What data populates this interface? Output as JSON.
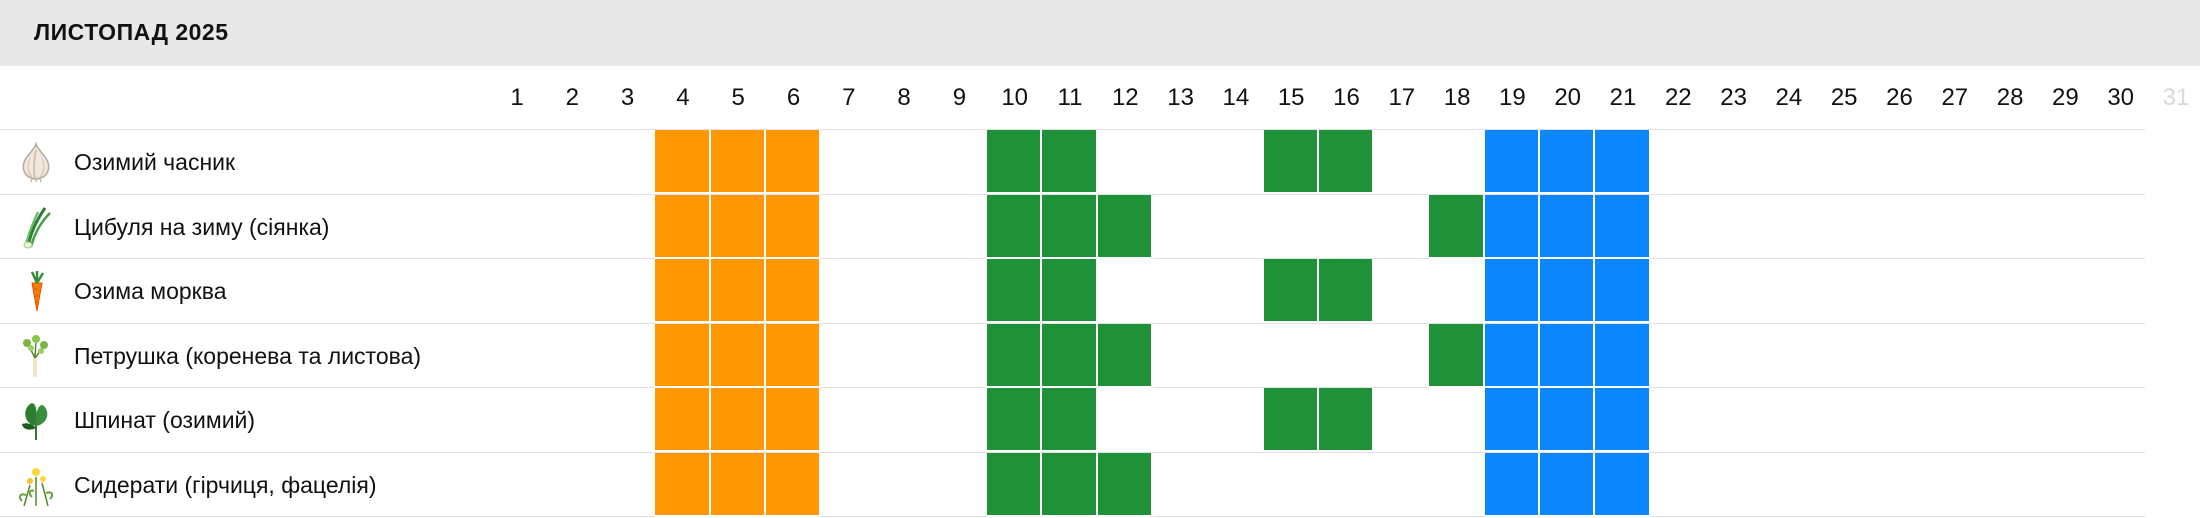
{
  "header": {
    "title": "ЛИСТОПАД 2025"
  },
  "days": [
    "1",
    "2",
    "3",
    "4",
    "5",
    "6",
    "7",
    "8",
    "9",
    "10",
    "11",
    "12",
    "13",
    "14",
    "15",
    "16",
    "17",
    "18",
    "19",
    "20",
    "21",
    "22",
    "23",
    "24",
    "25",
    "26",
    "27",
    "28",
    "29",
    "30",
    "31"
  ],
  "dim_days": [
    31
  ],
  "colors": {
    "orange": "#ff9603",
    "green": "#1f9139",
    "blue": "#0b86fb"
  },
  "rows": [
    {
      "label": "Озимий часник",
      "icon": "garlic-icon",
      "orange": [
        4,
        5,
        6
      ],
      "green": [
        10,
        11,
        15,
        16
      ],
      "blue": [
        19,
        20,
        21
      ]
    },
    {
      "label": "Цибуля на зиму (сіянка)",
      "icon": "green-onion-icon",
      "orange": [
        4,
        5,
        6
      ],
      "green": [
        10,
        11,
        12,
        18
      ],
      "blue": [
        19,
        20,
        21
      ]
    },
    {
      "label": "Озима морква",
      "icon": "carrot-icon",
      "orange": [
        4,
        5,
        6
      ],
      "green": [
        10,
        11,
        15,
        16
      ],
      "blue": [
        19,
        20,
        21
      ]
    },
    {
      "label": "Петрушка (коренева та листова)",
      "icon": "parsley-icon",
      "orange": [
        4,
        5,
        6
      ],
      "green": [
        10,
        11,
        12,
        18
      ],
      "blue": [
        19,
        20,
        21
      ]
    },
    {
      "label": "Шпинат (озимий)",
      "icon": "spinach-icon",
      "orange": [
        4,
        5,
        6
      ],
      "green": [
        10,
        11,
        15,
        16
      ],
      "blue": [
        19,
        20,
        21
      ]
    },
    {
      "label": "Сидерати (гірчиця, фацелія)",
      "icon": "green-manure-icon",
      "orange": [
        4,
        5,
        6
      ],
      "green": [
        10,
        11,
        12
      ],
      "blue": [
        19,
        20,
        21
      ]
    }
  ]
}
